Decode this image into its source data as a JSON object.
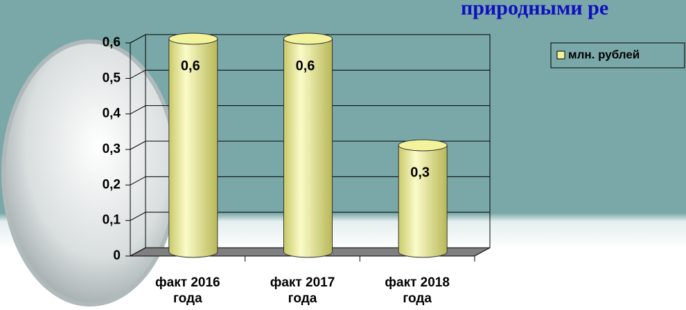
{
  "chart_data": {
    "type": "bar",
    "title": "природными ре",
    "categories": [
      "факт 2016 года",
      "факт 2017 года",
      "факт 2018 года"
    ],
    "series": [
      {
        "name": "млн. рублей",
        "color": "#f3f39c",
        "values": [
          0.6,
          0.6,
          0.3
        ],
        "value_labels": [
          "0,6",
          "0,6",
          "0,3"
        ]
      }
    ],
    "ylim": [
      0,
      0.6
    ],
    "yticks": [
      0,
      {
        "value": 0.1,
        "label": "0,1"
      },
      {
        "value": 0.2,
        "label": "0,2"
      },
      {
        "value": 0.3,
        "label": "0,3"
      },
      {
        "value": 0.4,
        "label": "0,4"
      },
      {
        "value": 0.5,
        "label": "0,5"
      },
      {
        "value": 0.6,
        "label": "0,6"
      }
    ],
    "grid": true,
    "legend": "top-right"
  }
}
